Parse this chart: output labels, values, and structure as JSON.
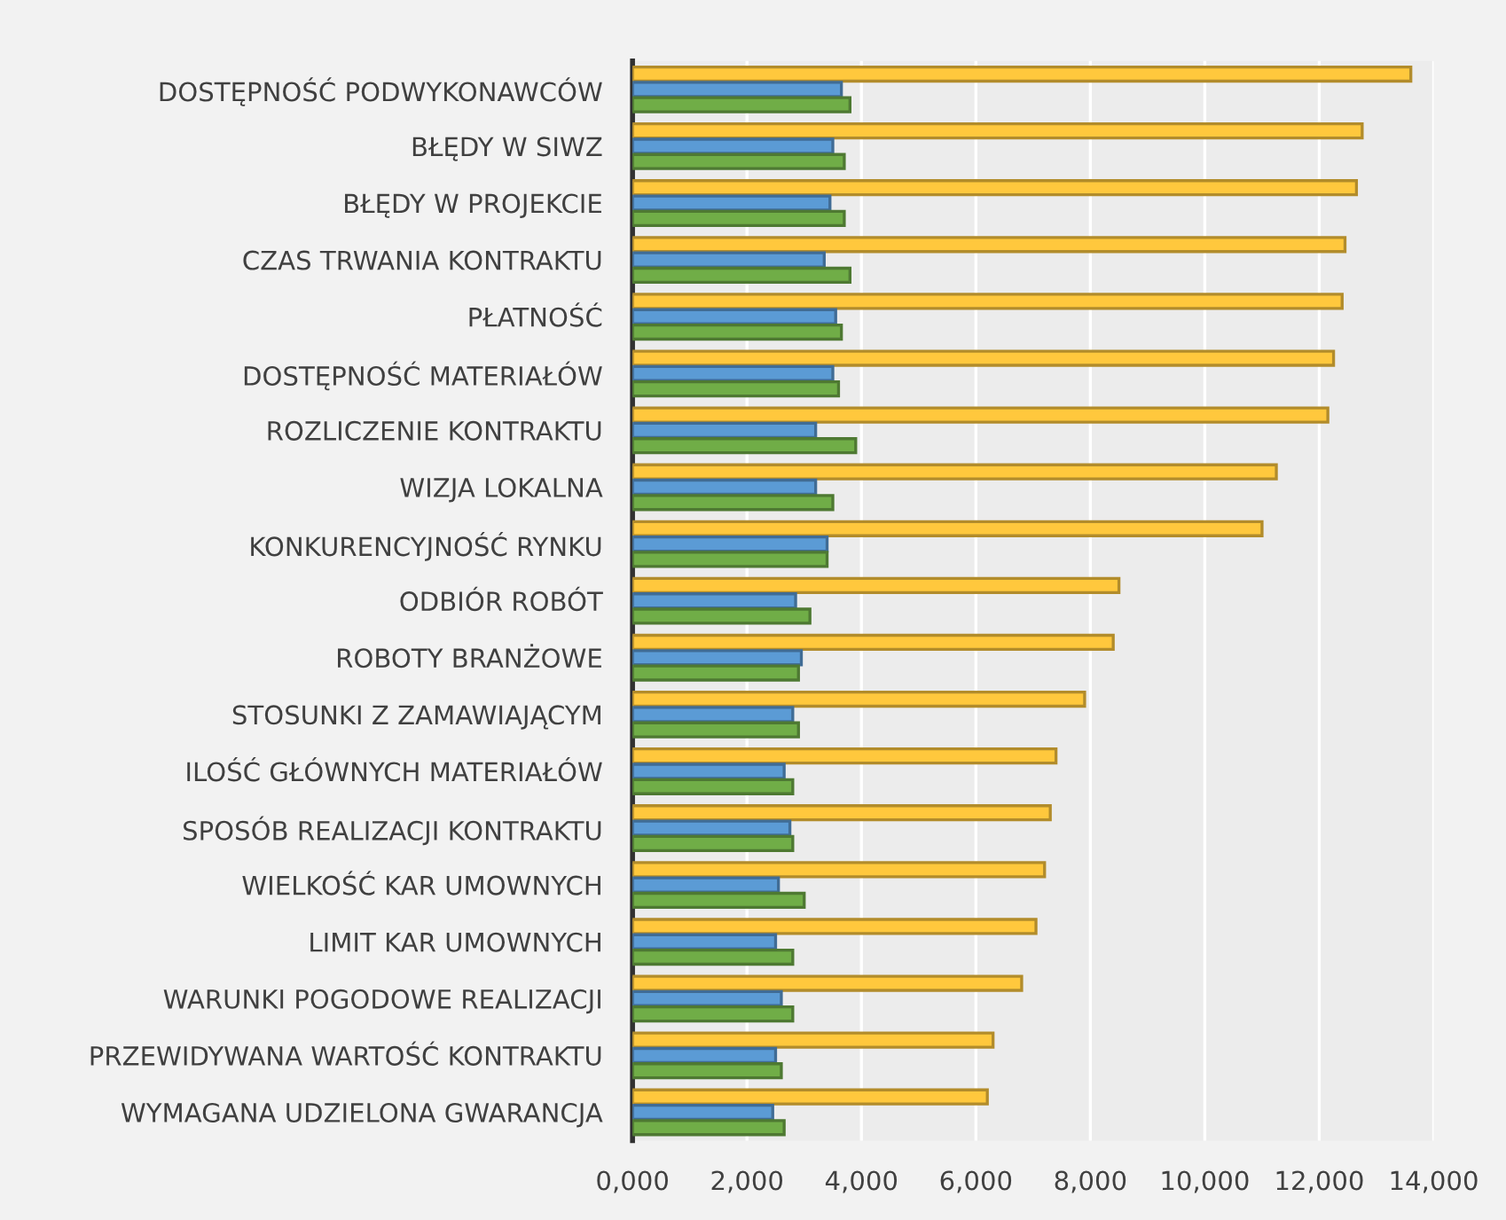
{
  "chart_data": {
    "type": "bar",
    "orientation": "horizontal",
    "categories": [
      "DOSTĘPNOŚĆ PODWYKONAWCÓW",
      "BŁĘDY W SIWZ",
      "BŁĘDY W PROJEKCIE",
      "CZAS TRWANIA KONTRAKTU",
      "PŁATNOŚĆ",
      "DOSTĘPNOŚĆ MATERIAŁÓW",
      "ROZLICZENIE KONTRAKTU",
      "WIZJA LOKALNA",
      "KONKURENCYJNOŚĆ RYNKU",
      "ODBIÓR ROBÓT",
      "ROBOTY BRANŻOWE",
      "STOSUNKI Z ZAMAWIAJĄCYM",
      "ILOŚĆ GŁÓWNYCH MATERIAŁÓW",
      "SPOSÓB REALIZACJI KONTRAKTU",
      "WIELKOŚĆ KAR UMOWNYCH",
      "LIMIT KAR UMOWNYCH",
      "WARUNKI POGODOWE REALIZACJI",
      "PRZEWIDYWANA WARTOŚĆ KONTRAKTU",
      "WYMAGANA UDZIELONA GWARANCJA"
    ],
    "series": [
      {
        "color": "#ffc83d",
        "values": [
          13600,
          12750,
          12650,
          12450,
          12400,
          12250,
          12150,
          11250,
          11000,
          8500,
          8400,
          7900,
          7400,
          7300,
          7200,
          7050,
          6800,
          6300,
          6200
        ]
      },
      {
        "color": "#5b9bd5",
        "values": [
          3650,
          3500,
          3450,
          3350,
          3550,
          3500,
          3200,
          3200,
          3400,
          2850,
          2950,
          2800,
          2650,
          2750,
          2550,
          2500,
          2600,
          2500,
          2450
        ]
      },
      {
        "color": "#70ad47",
        "values": [
          3800,
          3700,
          3700,
          3800,
          3650,
          3600,
          3900,
          3500,
          3400,
          3100,
          2900,
          2900,
          2800,
          2800,
          3000,
          2800,
          2800,
          2600,
          2650
        ]
      }
    ],
    "xlim": [
      0,
      14000
    ],
    "xticks": [
      {
        "value": 0,
        "label": "0,000"
      },
      {
        "value": 2000,
        "label": "2,000"
      },
      {
        "value": 4000,
        "label": "4,000"
      },
      {
        "value": 6000,
        "label": "6,000"
      },
      {
        "value": 8000,
        "label": "8,000"
      },
      {
        "value": 10000,
        "label": "10,000"
      },
      {
        "value": 12000,
        "label": "12,000"
      },
      {
        "value": 14000,
        "label": "14,000"
      }
    ],
    "grid": "x"
  }
}
